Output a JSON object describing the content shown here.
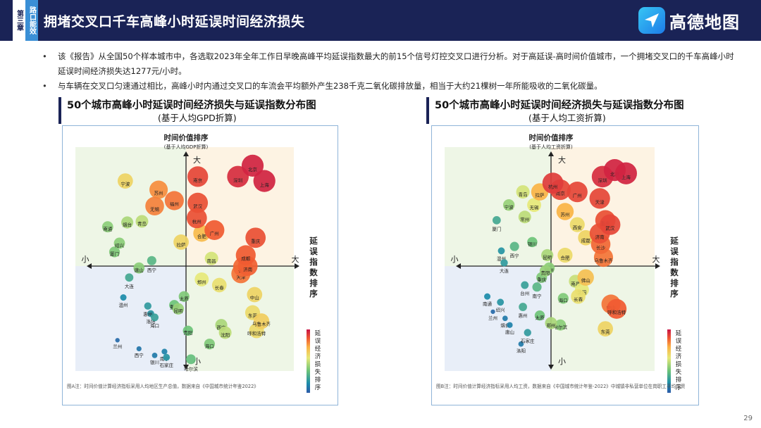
{
  "header": {
    "chapter": "第三章",
    "section": "路口能效",
    "title": "拥堵交叉口千车高峰小时延误时间经济损失",
    "brand": "高德地图"
  },
  "bullets": [
    "该《报告》从全国50个样本城市中，各选取2023年全年工作日早晚高峰平均延误指数最大的前15个信号灯控交叉口进行分析。对于高延误-高时间价值城市，一个拥堵交叉口的千车高峰小时延误时间经济损失达1277元/小时。",
    "与车辆在交叉口匀速通过相比，高峰小时内通过交叉口的车流会平均额外产生238千克二氧化碳排放量，相当于大约21棵树一年所能吸收的二氧化碳量。"
  ],
  "page_number": "29",
  "colors": {
    "header_bg": "#1a2356",
    "quadrant_top_left": "#eef6e6",
    "quadrant_top_right": "#fdf3e3",
    "quadrant_bottom_left": "#e8eef8",
    "quadrant_bottom_right": "#eef6e6"
  },
  "chart_data": [
    {
      "type": "scatter",
      "title": "50个城市高峰小时延误时间经济损失与延误指数分布图",
      "subtitle": "(基于人均GPD折算)",
      "ylabel": "时间价值排序",
      "ylabel_sub": "(基于人均GDP折算)",
      "xlabel": "延误指数排序",
      "y_top": "大",
      "y_bottom": "小",
      "x_left": "小",
      "x_right": "大",
      "colorbar_label": "延误经济损失排序",
      "note": "图A注：时间价值计算经济指标采用人均地区生产总值，数据来自《中国城市统计年鉴2022》",
      "cities": [
        {
          "name": "宁波",
          "x": -0.62,
          "y": 0.78,
          "s": 0.62
        },
        {
          "name": "苏州",
          "x": -0.28,
          "y": 0.7,
          "s": 0.78
        },
        {
          "name": "福州",
          "x": -0.12,
          "y": 0.6,
          "s": 0.82
        },
        {
          "name": "无锡",
          "x": -0.32,
          "y": 0.55,
          "s": 0.8
        },
        {
          "name": "烟台",
          "x": -0.6,
          "y": 0.4,
          "s": 0.45
        },
        {
          "name": "青岛",
          "x": -0.45,
          "y": 0.41,
          "s": 0.48
        },
        {
          "name": "南通",
          "x": -0.8,
          "y": 0.36,
          "s": 0.4
        },
        {
          "name": "绍兴",
          "x": -0.68,
          "y": 0.21,
          "s": 0.4
        },
        {
          "name": "厦门",
          "x": -0.73,
          "y": 0.13,
          "s": 0.38
        },
        {
          "name": "拉萨",
          "x": -0.05,
          "y": 0.22,
          "s": 0.62
        },
        {
          "name": "南京",
          "x": 0.12,
          "y": 0.82,
          "s": 0.9
        },
        {
          "name": "武汉",
          "x": 0.12,
          "y": 0.58,
          "s": 0.88
        },
        {
          "name": "杭州",
          "x": 0.11,
          "y": 0.44,
          "s": 0.88
        },
        {
          "name": "合肥",
          "x": 0.16,
          "y": 0.3,
          "s": 0.7
        },
        {
          "name": "广州",
          "x": 0.29,
          "y": 0.33,
          "s": 0.86
        },
        {
          "name": "北京",
          "x": 0.68,
          "y": 0.92,
          "s": 0.97
        },
        {
          "name": "深圳",
          "x": 0.53,
          "y": 0.82,
          "s": 0.95
        },
        {
          "name": "上海",
          "x": 0.8,
          "y": 0.78,
          "s": 0.97
        },
        {
          "name": "重庆",
          "x": 0.71,
          "y": 0.26,
          "s": 0.88
        },
        {
          "name": "成都",
          "x": 0.61,
          "y": 0.1,
          "s": 0.86
        },
        {
          "name": "长沙",
          "x": 0.58,
          "y": -0.01,
          "s": 0.84
        },
        {
          "name": "天津",
          "x": 0.56,
          "y": -0.08,
          "s": 0.82
        },
        {
          "name": "济南",
          "x": 0.63,
          "y": 0.0,
          "s": 0.85
        },
        {
          "name": "南昌",
          "x": 0.26,
          "y": 0.07,
          "s": 0.52
        },
        {
          "name": "郑州",
          "x": 0.16,
          "y": -0.14,
          "s": 0.55
        },
        {
          "name": "西宁",
          "x": -0.35,
          "y": 0.05,
          "s": 0.3
        },
        {
          "name": "唐山",
          "x": -0.48,
          "y": -0.02,
          "s": 0.4
        },
        {
          "name": "大连",
          "x": -0.58,
          "y": -0.12,
          "s": 0.25
        },
        {
          "name": "温州",
          "x": -0.64,
          "y": -0.33,
          "s": 0.15
        },
        {
          "name": "惠州",
          "x": -0.39,
          "y": -0.42,
          "s": 0.2
        },
        {
          "name": "洛阳",
          "x": -0.36,
          "y": -0.5,
          "s": 0.18
        },
        {
          "name": "海口",
          "x": -0.32,
          "y": -0.54,
          "s": 0.22
        },
        {
          "name": "太原",
          "x": -0.02,
          "y": -0.32,
          "s": 0.38
        },
        {
          "name": "重庆2",
          "label": "重庆",
          "x": -0.12,
          "y": -0.41,
          "s": 0.35
        },
        {
          "name": "昆明",
          "x": -0.08,
          "y": -0.45,
          "s": 0.42
        },
        {
          "name": "长春",
          "x": 0.34,
          "y": -0.2,
          "s": 0.58
        },
        {
          "name": "中山",
          "x": 0.7,
          "y": -0.3,
          "s": 0.62
        },
        {
          "name": "东莞",
          "x": 0.68,
          "y": -0.49,
          "s": 0.6
        },
        {
          "name": "乌鲁木齐",
          "x": 0.77,
          "y": -0.58,
          "s": 0.64
        },
        {
          "name": "呼和浩特",
          "x": 0.72,
          "y": -0.68,
          "s": 0.6
        },
        {
          "name": "贵阳",
          "x": 0.02,
          "y": -0.68,
          "s": 0.35
        },
        {
          "name": "西安",
          "x": 0.36,
          "y": -0.62,
          "s": 0.45
        },
        {
          "name": "沈阳",
          "x": 0.4,
          "y": -0.7,
          "s": 0.48
        },
        {
          "name": "海口2",
          "label": "海口",
          "x": 0.24,
          "y": -0.82,
          "s": 0.38
        },
        {
          "name": "哈尔滨",
          "x": 0.05,
          "y": -0.98,
          "s": 0.33
        },
        {
          "name": "兰州",
          "x": -0.7,
          "y": -0.78,
          "s": 0.05
        },
        {
          "name": "西宁2",
          "label": "西宁",
          "x": -0.48,
          "y": -0.87,
          "s": 0.08
        },
        {
          "name": "银川",
          "x": -0.32,
          "y": -0.94,
          "s": 0.1
        },
        {
          "name": "南宁",
          "x": -0.22,
          "y": -0.9,
          "s": 0.12
        },
        {
          "name": "石家庄",
          "x": -0.2,
          "y": -0.96,
          "s": 0.18
        }
      ]
    },
    {
      "type": "scatter",
      "title": "50个城市高峰小时延误时间经济损失与延误指数分布图",
      "subtitle": "(基于人均工资折算)",
      "ylabel": "时间价值排序",
      "ylabel_sub": "(基于人均工资折算)",
      "xlabel": "延误指数排序",
      "y_top": "大",
      "y_bottom": "小",
      "x_left": "小",
      "x_right": "大",
      "colorbar_label": "延误经济损失排序",
      "note": "图B注：时间价值计算经济指标采用人均工资，数据来自《中国城市统计年鉴-2022》中城镇非私营单位在岗职工平均工资",
      "cities": [
        {
          "name": "北京",
          "x": 0.68,
          "y": 0.88,
          "s": 0.97
        },
        {
          "name": "上海",
          "x": 0.8,
          "y": 0.85,
          "s": 0.97
        },
        {
          "name": "深圳",
          "x": 0.55,
          "y": 0.82,
          "s": 0.95
        },
        {
          "name": "天津",
          "x": 0.52,
          "y": 0.62,
          "s": 0.9
        },
        {
          "name": "广州",
          "x": 0.28,
          "y": 0.68,
          "s": 0.9
        },
        {
          "name": "杭州",
          "x": 0.02,
          "y": 0.76,
          "s": 0.92
        },
        {
          "name": "南京",
          "x": 0.1,
          "y": 0.7,
          "s": 0.9
        },
        {
          "name": "拉萨",
          "x": -0.12,
          "y": 0.68,
          "s": 0.72
        },
        {
          "name": "苏州",
          "x": 0.15,
          "y": 0.5,
          "s": 0.72
        },
        {
          "name": "武汉",
          "x": 0.63,
          "y": 0.38,
          "s": 0.9
        },
        {
          "name": "济南",
          "x": 0.52,
          "y": 0.3,
          "s": 0.88
        },
        {
          "name": "长沙",
          "x": 0.53,
          "y": 0.2,
          "s": 0.84
        },
        {
          "name": "西安",
          "x": 0.28,
          "y": 0.38,
          "s": 0.6
        },
        {
          "name": "成都",
          "x": 0.37,
          "y": 0.26,
          "s": 0.62
        },
        {
          "name": "重庆",
          "x": 0.58,
          "y": 0.42,
          "s": 0.88
        },
        {
          "name": "合肥",
          "x": 0.15,
          "y": 0.1,
          "s": 0.6
        },
        {
          "name": "青岛",
          "x": -0.3,
          "y": 0.68,
          "s": 0.52
        },
        {
          "name": "宁波",
          "x": -0.45,
          "y": 0.56,
          "s": 0.42
        },
        {
          "name": "无锡",
          "x": -0.18,
          "y": 0.56,
          "s": 0.55
        },
        {
          "name": "常州",
          "x": -0.28,
          "y": 0.45,
          "s": 0.48
        },
        {
          "name": "厦门",
          "x": -0.58,
          "y": 0.42,
          "s": 0.25
        },
        {
          "name": "银川",
          "x": -0.2,
          "y": 0.22,
          "s": 0.35
        },
        {
          "name": "温州",
          "x": -0.53,
          "y": 0.14,
          "s": 0.18
        },
        {
          "name": "西宁",
          "x": -0.39,
          "y": 0.18,
          "s": 0.3
        },
        {
          "name": "大连",
          "x": -0.5,
          "y": 0.03,
          "s": 0.2
        },
        {
          "name": "昆明",
          "x": -0.04,
          "y": 0.1,
          "s": 0.45
        },
        {
          "name": "贵阳",
          "x": -0.06,
          "y": -0.05,
          "s": 0.42
        },
        {
          "name": "福州",
          "x": -0.02,
          "y": -0.02,
          "s": 0.4
        },
        {
          "name": "重庆2",
          "label": "重庆",
          "x": -0.1,
          "y": -0.12,
          "s": 0.38
        },
        {
          "name": "台州",
          "x": -0.28,
          "y": -0.2,
          "s": 0.22
        },
        {
          "name": "南宁",
          "x": -0.15,
          "y": -0.22,
          "s": 0.3
        },
        {
          "name": "乌鲁木齐",
          "x": 0.56,
          "y": 0.08,
          "s": 0.82
        },
        {
          "name": "佛山",
          "x": 0.37,
          "y": -0.12,
          "s": 0.68
        },
        {
          "name": "南昌",
          "x": 0.26,
          "y": -0.16,
          "s": 0.5
        },
        {
          "name": "沈阳",
          "x": 0.33,
          "y": -0.25,
          "s": 0.55
        },
        {
          "name": "长春",
          "x": 0.29,
          "y": -0.32,
          "s": 0.58
        },
        {
          "name": "海口",
          "x": 0.13,
          "y": -0.34,
          "s": 0.38
        },
        {
          "name": "中山",
          "x": 0.64,
          "y": -0.4,
          "s": 0.82
        },
        {
          "name": "呼和浩特",
          "x": 0.7,
          "y": -0.45,
          "s": 0.86
        },
        {
          "name": "东莞",
          "x": 0.58,
          "y": -0.66,
          "s": 0.62
        },
        {
          "name": "南通",
          "x": -0.68,
          "y": -0.32,
          "s": 0.15
        },
        {
          "name": "绍兴",
          "x": -0.54,
          "y": -0.38,
          "s": 0.18
        },
        {
          "name": "惠州",
          "x": -0.3,
          "y": -0.43,
          "s": 0.25
        },
        {
          "name": "太原",
          "x": -0.12,
          "y": -0.52,
          "s": 0.35
        },
        {
          "name": "郑州",
          "x": 0.0,
          "y": -0.6,
          "s": 0.45
        },
        {
          "name": "哈尔滨",
          "x": 0.1,
          "y": -0.62,
          "s": 0.4
        },
        {
          "name": "兰州",
          "x": -0.62,
          "y": -0.48,
          "s": 0.05
        },
        {
          "name": "烟台",
          "x": -0.49,
          "y": -0.55,
          "s": 0.1
        },
        {
          "name": "唐山",
          "x": -0.44,
          "y": -0.62,
          "s": 0.12
        },
        {
          "name": "石家庄",
          "x": -0.25,
          "y": -0.7,
          "s": 0.2
        },
        {
          "name": "洛阳",
          "x": -0.32,
          "y": -0.82,
          "s": 0.1
        }
      ]
    }
  ]
}
